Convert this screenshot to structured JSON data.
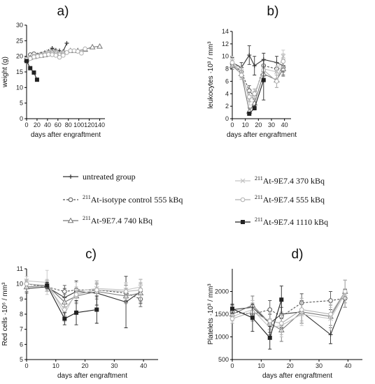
{
  "legend": [
    {
      "sup": "",
      "label": "untreated group",
      "color": "#333333",
      "marker": "plus",
      "dash": false
    },
    {
      "sup": "211",
      "label": "At-isotype control 555 kBq",
      "color": "#555555",
      "marker": "circle-open",
      "dash": true
    },
    {
      "sup": "211",
      "label": "At-9E7.4 740 kBq",
      "color": "#777777",
      "marker": "triangle-open",
      "dash": false
    },
    {
      "sup": "211",
      "label": "At-9E7.4 370 kBq",
      "color": "#c4c4c4",
      "marker": "x",
      "dash": false
    },
    {
      "sup": "211",
      "label": "At-9E7.4 555 kBq",
      "color": "#b0b0b0",
      "marker": "circle-open",
      "dash": false
    },
    {
      "sup": "211",
      "label": "At-9E7.4 1110 kBq",
      "color": "#222222",
      "marker": "square-filled",
      "dash": false
    }
  ],
  "chart_data": [
    {
      "panel": "a)",
      "type": "line",
      "xlabel": "days after engraftment",
      "ylabel": "weight (g)",
      "xlim": [
        0,
        150
      ],
      "ylim": [
        0,
        30
      ],
      "xticks": [
        0,
        20,
        40,
        60,
        80,
        100,
        120,
        140
      ],
      "yticks": [
        0,
        5,
        10,
        15,
        20,
        25,
        30
      ],
      "series": [
        {
          "legend_index": 0,
          "x": [
            0,
            7,
            14,
            21,
            28,
            35,
            42,
            49,
            56,
            63,
            70,
            77
          ],
          "y": [
            19.0,
            19.5,
            20.0,
            20.3,
            20.8,
            21.2,
            21.6,
            22.6,
            22.0,
            21.8,
            21.6,
            24.2
          ],
          "err": []
        },
        {
          "legend_index": 1,
          "x": [
            0,
            7,
            14,
            21,
            28,
            35,
            42,
            49,
            56
          ],
          "y": [
            19.2,
            20.5,
            20.8,
            20.4,
            20.6,
            20.9,
            21.3,
            21.2,
            21.5
          ],
          "err": []
        },
        {
          "legend_index": 2,
          "x": [
            0,
            7,
            14,
            21,
            28,
            35,
            42,
            56,
            70,
            84,
            98,
            112,
            126,
            140
          ],
          "y": [
            19.0,
            19.6,
            19.9,
            20.2,
            20.3,
            20.5,
            20.8,
            21.0,
            21.3,
            21.8,
            21.8,
            22.2,
            23.0,
            23.2
          ],
          "err": []
        },
        {
          "legend_index": 3,
          "x": [
            0,
            7,
            14,
            21,
            28,
            35,
            42,
            49,
            56,
            63,
            70
          ],
          "y": [
            19.2,
            19.5,
            19.8,
            20.3,
            20.6,
            21.0,
            21.5,
            21.6,
            21.4,
            21.2,
            21.3
          ],
          "err": []
        },
        {
          "legend_index": 4,
          "x": [
            0,
            7,
            14,
            21,
            28,
            35,
            42,
            49,
            56,
            63,
            70,
            77,
            84,
            91,
            98,
            105,
            112
          ],
          "y": [
            19.0,
            19.3,
            19.8,
            20.0,
            20.2,
            20.4,
            20.6,
            20.5,
            20.3,
            19.7,
            20.3,
            21.2,
            21.8,
            21.8,
            21.6,
            21.0,
            22.4
          ],
          "err": []
        },
        {
          "legend_index": 5,
          "x": [
            0,
            7,
            14,
            20
          ],
          "y": [
            18.5,
            16.2,
            14.8,
            12.5
          ],
          "err": []
        }
      ]
    },
    {
      "panel": "b)",
      "type": "line",
      "xlabel": "days after engraftment",
      "ylabel": "leukocytes ·10³ / mm³",
      "xlim": [
        0,
        45
      ],
      "ylim": [
        0,
        14
      ],
      "xticks": [
        0,
        10,
        20,
        30,
        40
      ],
      "yticks": [
        0,
        2,
        4,
        6,
        8,
        10,
        12,
        14
      ],
      "series": [
        {
          "legend_index": 0,
          "x": [
            0,
            7,
            13,
            17,
            24,
            34,
            39
          ],
          "y": [
            9.0,
            8.2,
            10.2,
            8.5,
            9.5,
            9.0,
            8.5
          ],
          "err": [
            0.8,
            0.8,
            1.5,
            1.5,
            1.0,
            1.0,
            1.0
          ]
        },
        {
          "legend_index": 1,
          "x": [
            0,
            7,
            13,
            17,
            24,
            34,
            39
          ],
          "y": [
            8.8,
            7.5,
            4.5,
            3.5,
            8.5,
            8.0,
            8.2
          ],
          "err": [
            0.6,
            0.7,
            0.8,
            0.8,
            1.0,
            1.0,
            1.2
          ]
        },
        {
          "legend_index": 2,
          "x": [
            0,
            7,
            13,
            17,
            24,
            34,
            39
          ],
          "y": [
            8.5,
            7.2,
            1.2,
            2.5,
            7.2,
            6.2,
            8.0
          ],
          "err": [
            0.6,
            0.6,
            0.5,
            0.6,
            1.2,
            1.2,
            1.2
          ]
        },
        {
          "legend_index": 3,
          "x": [
            0,
            7,
            13,
            17,
            24,
            34,
            39
          ],
          "y": [
            9.2,
            7.6,
            3.0,
            3.8,
            8.0,
            7.5,
            10.0
          ],
          "err": [
            0.8,
            0.7,
            0.8,
            0.8,
            1.2,
            1.0,
            1.0
          ]
        },
        {
          "legend_index": 4,
          "x": [
            0,
            7,
            13,
            17,
            24,
            34,
            39
          ],
          "y": [
            9.0,
            7.0,
            3.5,
            4.0,
            7.8,
            6.0,
            9.2
          ],
          "err": [
            0.7,
            0.7,
            0.8,
            0.8,
            1.0,
            1.0,
            1.2
          ]
        },
        {
          "legend_index": 5,
          "x": [
            13,
            17,
            24
          ],
          "y": [
            0.8,
            1.7,
            6.2
          ],
          "err": [
            0.2,
            0.3,
            3.2
          ]
        }
      ]
    },
    {
      "panel": "c)",
      "type": "line",
      "xlabel": "days after engraftment",
      "ylabel": "Red cells ·10⁶ / mm³",
      "xlim": [
        0,
        45
      ],
      "ylim": [
        5,
        11
      ],
      "xticks": [
        0,
        10,
        20,
        30,
        40
      ],
      "yticks": [
        5,
        6,
        7,
        8,
        9,
        10,
        11
      ],
      "series": [
        {
          "legend_index": 0,
          "x": [
            0,
            7,
            13,
            17,
            24,
            34,
            39
          ],
          "y": [
            9.7,
            9.8,
            9.1,
            9.5,
            9.4,
            8.8,
            9.5
          ],
          "err": [
            0.3,
            0.3,
            0.6,
            0.7,
            0.8,
            1.7,
            0.8
          ]
        },
        {
          "legend_index": 1,
          "x": [
            0,
            7,
            13,
            17,
            24,
            34,
            39
          ],
          "y": [
            10.0,
            9.8,
            9.5,
            9.6,
            9.6,
            9.4,
            9.0
          ],
          "err": [
            0.2,
            0.3,
            0.4,
            0.5,
            0.4,
            0.5,
            0.5
          ]
        },
        {
          "legend_index": 2,
          "x": [
            0,
            7,
            13,
            17,
            24,
            34,
            39
          ],
          "y": [
            9.8,
            9.9,
            8.8,
            9.2,
            9.5,
            9.2,
            9.4
          ],
          "err": [
            0.3,
            0.3,
            0.5,
            0.5,
            0.5,
            0.5,
            0.6
          ]
        },
        {
          "legend_index": 3,
          "x": [
            0,
            7,
            13,
            17,
            24,
            34,
            39
          ],
          "y": [
            10.2,
            10.1,
            8.0,
            9.5,
            9.7,
            9.6,
            9.8
          ],
          "err": [
            0.3,
            0.8,
            0.5,
            0.6,
            0.5,
            0.5,
            0.5
          ]
        },
        {
          "legend_index": 4,
          "x": [
            0,
            7,
            13,
            17,
            24,
            34,
            39
          ],
          "y": [
            10.0,
            9.9,
            8.3,
            9.3,
            9.6,
            9.5,
            9.6
          ],
          "err": [
            0.3,
            0.4,
            0.5,
            0.5,
            0.5,
            0.5,
            0.5
          ]
        },
        {
          "legend_index": 5,
          "x": [
            7,
            13,
            17,
            24
          ],
          "y": [
            9.9,
            7.7,
            8.1,
            8.3
          ],
          "err": [
            0.2,
            0.4,
            0.8,
            0.9
          ]
        }
      ]
    },
    {
      "panel": "d)",
      "type": "line",
      "xlabel": "days after engraftment",
      "ylabel": "Platelets ·10³ / mm³",
      "xlim": [
        0,
        45
      ],
      "ylim": [
        500,
        2500
      ],
      "xticks": [
        0,
        10,
        20,
        30,
        40
      ],
      "yticks": [
        500,
        1000,
        1500,
        2000
      ],
      "series": [
        {
          "legend_index": 0,
          "x": [
            0,
            7,
            13,
            17,
            24,
            34,
            39
          ],
          "y": [
            1600,
            1650,
            1300,
            1500,
            1550,
            1050,
            1850
          ],
          "err": [
            100,
            150,
            200,
            300,
            250,
            200,
            200
          ]
        },
        {
          "legend_index": 1,
          "x": [
            0,
            7,
            13,
            17,
            24,
            34,
            39
          ],
          "y": [
            1550,
            1500,
            1600,
            1450,
            1750,
            1800,
            1850
          ],
          "err": [
            100,
            150,
            200,
            200,
            200,
            200,
            200
          ]
        },
        {
          "legend_index": 2,
          "x": [
            0,
            7,
            13,
            17,
            24,
            34,
            39
          ],
          "y": [
            1500,
            1700,
            1300,
            1150,
            1550,
            1450,
            2000
          ],
          "err": [
            100,
            200,
            250,
            250,
            250,
            250,
            250
          ]
        },
        {
          "legend_index": 3,
          "x": [
            0,
            7,
            13,
            17,
            24,
            34,
            39
          ],
          "y": [
            1450,
            1600,
            1200,
            1250,
            1500,
            1400,
            1950
          ],
          "err": [
            100,
            200,
            200,
            250,
            250,
            250,
            300
          ]
        },
        {
          "legend_index": 4,
          "x": [
            0,
            7,
            13,
            17,
            24,
            34,
            39
          ],
          "y": [
            1400,
            1550,
            1350,
            1300,
            1600,
            1500,
            2000
          ],
          "err": [
            100,
            200,
            200,
            250,
            250,
            250,
            250
          ]
        },
        {
          "legend_index": 5,
          "x": [
            0,
            7,
            13,
            17
          ],
          "y": [
            1620,
            1420,
            980,
            1820
          ],
          "err": [
            100,
            300,
            250,
            300
          ]
        }
      ]
    }
  ]
}
